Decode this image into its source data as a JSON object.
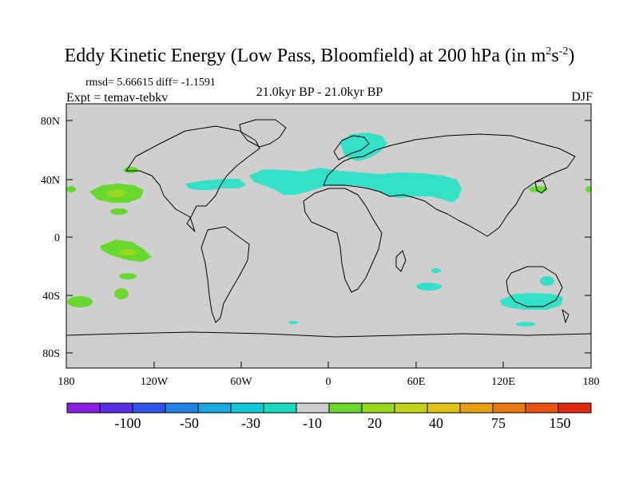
{
  "title": {
    "main": "Eddy Kinetic Energy (Low Pass, Bloomfield) at 200 hPa (in m",
    "sup1": "2",
    "mid": "s",
    "sup2": "-2",
    "end": ")"
  },
  "stats": "rmsd= 5.66615 diff= -1.1591",
  "experiment": "Expt = temav-tebkv",
  "period": "21.0kyr BP - 21.0kyr BP",
  "season": "DJF",
  "axes": {
    "lat_labels": [
      "80N",
      "40N",
      "0",
      "40S",
      "80S"
    ],
    "lon_labels": [
      "180",
      "120W",
      "60W",
      "0",
      "60E",
      "120E",
      "180"
    ]
  },
  "colorbar": {
    "colors": [
      "#8a1ee0",
      "#5b2ee6",
      "#2f55e8",
      "#1f84e6",
      "#18a8e2",
      "#12c7d6",
      "#19dcc0",
      "#cfcfcf",
      "#66d92c",
      "#98d81e",
      "#c4d31a",
      "#e0c214",
      "#e8a012",
      "#e87a12",
      "#e85412",
      "#e02a10"
    ],
    "labels": [
      "-100",
      "-50",
      "-30",
      "-10",
      "20",
      "40",
      "75",
      "150"
    ]
  },
  "colors": {
    "land_background": "#cfcfcf",
    "negative_anomaly": "#32e1c8",
    "positive_anomaly": "#66d92c",
    "positive_strong": "#98d81e"
  }
}
